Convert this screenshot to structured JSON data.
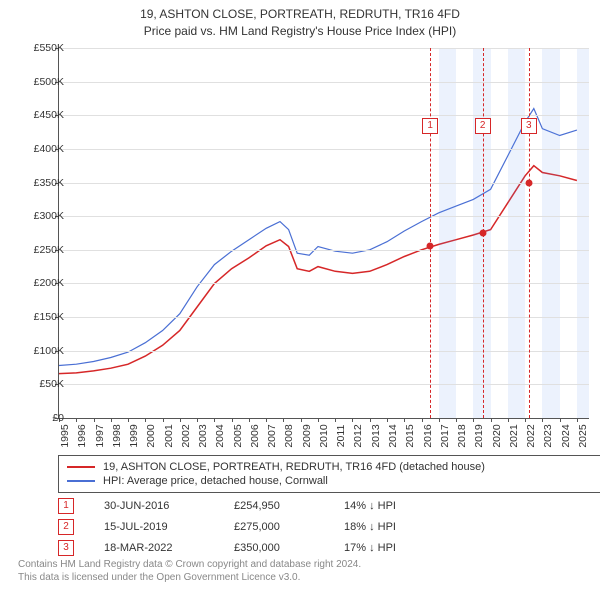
{
  "title_line1": "19, ASHTON CLOSE, PORTREATH, REDRUTH, TR16 4FD",
  "title_line2": "Price paid vs. HM Land Registry's House Price Index (HPI)",
  "chart": {
    "type": "line",
    "background_color": "#ffffff",
    "grid_color": "#e0e0e0",
    "axis_color": "#555555",
    "ylim": [
      0,
      550000
    ],
    "ytick_step": 50000,
    "ytick_prefix": "£",
    "ytick_suffix": "K",
    "yticks": [
      0,
      50,
      100,
      150,
      200,
      250,
      300,
      350,
      400,
      450,
      500,
      550
    ],
    "xlim": [
      1995,
      2025.7
    ],
    "xticks": [
      1995,
      1996,
      1997,
      1998,
      1999,
      2000,
      2001,
      2002,
      2003,
      2004,
      2005,
      2006,
      2007,
      2008,
      2009,
      2010,
      2011,
      2012,
      2013,
      2014,
      2015,
      2016,
      2017,
      2018,
      2019,
      2020,
      2021,
      2022,
      2023,
      2024,
      2025
    ],
    "yearly_shade_color": "rgba(100,149,237,0.12)",
    "shaded_years": [
      2017,
      2019,
      2021,
      2023,
      2025
    ],
    "label_fontsize": 10.5,
    "series": [
      {
        "name": "property",
        "color": "#d62728",
        "width": 1.5,
        "label": "19, ASHTON CLOSE, PORTREATH, REDRUTH, TR16 4FD (detached house)",
        "points": [
          [
            1995,
            66000
          ],
          [
            1996,
            67000
          ],
          [
            1997,
            70000
          ],
          [
            1998,
            74000
          ],
          [
            1999,
            80000
          ],
          [
            2000,
            92000
          ],
          [
            2001,
            108000
          ],
          [
            2002,
            130000
          ],
          [
            2003,
            165000
          ],
          [
            2004,
            200000
          ],
          [
            2005,
            222000
          ],
          [
            2006,
            238000
          ],
          [
            2007,
            256000
          ],
          [
            2007.8,
            265000
          ],
          [
            2008.3,
            255000
          ],
          [
            2008.8,
            222000
          ],
          [
            2009.5,
            218000
          ],
          [
            2010,
            225000
          ],
          [
            2011,
            218000
          ],
          [
            2012,
            215000
          ],
          [
            2013,
            218000
          ],
          [
            2014,
            228000
          ],
          [
            2015,
            240000
          ],
          [
            2016,
            250000
          ],
          [
            2017,
            258000
          ],
          [
            2018,
            265000
          ],
          [
            2019,
            272000
          ],
          [
            2020,
            280000
          ],
          [
            2021,
            320000
          ],
          [
            2022,
            360000
          ],
          [
            2022.5,
            375000
          ],
          [
            2023,
            365000
          ],
          [
            2024,
            360000
          ],
          [
            2025,
            353000
          ]
        ]
      },
      {
        "name": "hpi",
        "color": "#4a6fd4",
        "width": 1.2,
        "label": "HPI: Average price, detached house, Cornwall",
        "points": [
          [
            1995,
            78000
          ],
          [
            1996,
            80000
          ],
          [
            1997,
            84000
          ],
          [
            1998,
            90000
          ],
          [
            1999,
            98000
          ],
          [
            2000,
            112000
          ],
          [
            2001,
            130000
          ],
          [
            2002,
            155000
          ],
          [
            2003,
            195000
          ],
          [
            2004,
            228000
          ],
          [
            2005,
            248000
          ],
          [
            2006,
            265000
          ],
          [
            2007,
            282000
          ],
          [
            2007.8,
            292000
          ],
          [
            2008.3,
            280000
          ],
          [
            2008.8,
            245000
          ],
          [
            2009.5,
            242000
          ],
          [
            2010,
            255000
          ],
          [
            2011,
            248000
          ],
          [
            2012,
            245000
          ],
          [
            2013,
            250000
          ],
          [
            2014,
            262000
          ],
          [
            2015,
            278000
          ],
          [
            2016,
            292000
          ],
          [
            2017,
            305000
          ],
          [
            2018,
            315000
          ],
          [
            2019,
            325000
          ],
          [
            2020,
            340000
          ],
          [
            2021,
            390000
          ],
          [
            2022,
            440000
          ],
          [
            2022.5,
            460000
          ],
          [
            2023,
            430000
          ],
          [
            2024,
            420000
          ],
          [
            2025,
            428000
          ]
        ]
      }
    ],
    "markers": [
      {
        "n": "1",
        "x": 2016.5,
        "y": 254950
      },
      {
        "n": "2",
        "x": 2019.54,
        "y": 275000
      },
      {
        "n": "3",
        "x": 2022.21,
        "y": 350000
      }
    ],
    "marker_tag_y": 70
  },
  "legend": {
    "border_color": "#555555"
  },
  "transactions": [
    {
      "n": "1",
      "date": "30-JUN-2016",
      "price": "£254,950",
      "pct": "14% ↓ HPI"
    },
    {
      "n": "2",
      "date": "15-JUL-2019",
      "price": "£275,000",
      "pct": "18% ↓ HPI"
    },
    {
      "n": "3",
      "date": "18-MAR-2022",
      "price": "£350,000",
      "pct": "17% ↓ HPI"
    }
  ],
  "footer_line1": "Contains HM Land Registry data © Crown copyright and database right 2024.",
  "footer_line2": "This data is licensed under the Open Government Licence v3.0."
}
